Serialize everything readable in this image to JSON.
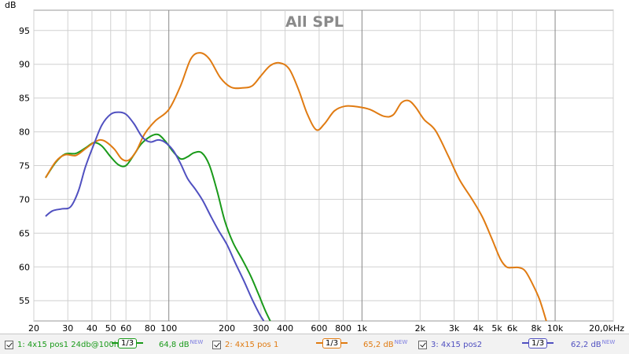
{
  "chart_data": {
    "type": "line",
    "title": "All SPL",
    "ylabel": "dB",
    "xlabel": "",
    "x_scale": "log",
    "xlim": [
      20,
      20000
    ],
    "ylim": [
      52,
      98
    ],
    "grid": true,
    "x_tick_values": [
      20,
      30,
      40,
      50,
      60,
      80,
      100,
      200,
      300,
      400,
      600,
      800,
      1000,
      2000,
      3000,
      4000,
      5000,
      6000,
      8000,
      10000,
      20000
    ],
    "x_tick_labels": [
      "20",
      "30",
      "40",
      "50",
      "60",
      "80",
      "100",
      "200",
      "300",
      "400",
      "600",
      "800",
      "1k",
      "2k",
      "3k",
      "4k",
      "5k",
      "6k",
      "8k",
      "10k",
      "20,0kHz"
    ],
    "y_tick_values": [
      55,
      60,
      65,
      70,
      75,
      80,
      85,
      90,
      95
    ],
    "y_tick_labels": [
      "55",
      "60",
      "65",
      "70",
      "75",
      "80",
      "85",
      "90",
      "95"
    ],
    "series": [
      {
        "name": "1: 4x15 pos1 24db@100h",
        "color": "#1a9a1a",
        "points": [
          [
            23,
            73.2
          ],
          [
            26,
            75.5
          ],
          [
            29,
            76.7
          ],
          [
            33,
            76.8
          ],
          [
            37,
            77.6
          ],
          [
            41,
            78.4
          ],
          [
            45,
            77.9
          ],
          [
            50,
            76.3
          ],
          [
            55,
            75.1
          ],
          [
            60,
            75.0
          ],
          [
            66,
            76.6
          ],
          [
            72,
            78.2
          ],
          [
            80,
            79.3
          ],
          [
            88,
            79.6
          ],
          [
            96,
            78.6
          ],
          [
            105,
            77.1
          ],
          [
            115,
            76.0
          ],
          [
            125,
            76.3
          ],
          [
            135,
            76.9
          ],
          [
            148,
            76.9
          ],
          [
            162,
            75.1
          ],
          [
            178,
            71.2
          ],
          [
            195,
            66.8
          ],
          [
            215,
            63.6
          ],
          [
            240,
            61.1
          ],
          [
            265,
            58.7
          ],
          [
            290,
            56.1
          ],
          [
            315,
            53.6
          ],
          [
            335,
            52.0
          ]
        ]
      },
      {
        "name": "2: 4x15 pos 1",
        "color": "#e07b12",
        "points": [
          [
            23,
            73.2
          ],
          [
            26,
            75.6
          ],
          [
            29,
            76.6
          ],
          [
            33,
            76.5
          ],
          [
            37,
            77.5
          ],
          [
            42,
            78.6
          ],
          [
            46,
            78.7
          ],
          [
            52,
            77.5
          ],
          [
            57,
            76.0
          ],
          [
            62,
            75.8
          ],
          [
            68,
            77.2
          ],
          [
            75,
            79.7
          ],
          [
            85,
            81.6
          ],
          [
            100,
            83.3
          ],
          [
            115,
            86.8
          ],
          [
            130,
            90.8
          ],
          [
            145,
            91.7
          ],
          [
            162,
            90.8
          ],
          [
            185,
            88.0
          ],
          [
            210,
            86.6
          ],
          [
            240,
            86.5
          ],
          [
            270,
            86.8
          ],
          [
            300,
            88.3
          ],
          [
            335,
            89.8
          ],
          [
            375,
            90.2
          ],
          [
            420,
            89.3
          ],
          [
            470,
            86.2
          ],
          [
            520,
            82.7
          ],
          [
            580,
            80.3
          ],
          [
            640,
            81.2
          ],
          [
            720,
            83.1
          ],
          [
            820,
            83.8
          ],
          [
            950,
            83.7
          ],
          [
            1100,
            83.3
          ],
          [
            1300,
            82.3
          ],
          [
            1450,
            82.5
          ],
          [
            1600,
            84.3
          ],
          [
            1750,
            84.6
          ],
          [
            1900,
            83.6
          ],
          [
            2100,
            81.8
          ],
          [
            2400,
            80.2
          ],
          [
            2800,
            76.4
          ],
          [
            3200,
            72.9
          ],
          [
            3700,
            70.1
          ],
          [
            4200,
            67.4
          ],
          [
            4700,
            64.2
          ],
          [
            5200,
            61.2
          ],
          [
            5600,
            60.0
          ],
          [
            6000,
            59.9
          ],
          [
            6500,
            59.9
          ],
          [
            7000,
            59.4
          ],
          [
            7600,
            57.6
          ],
          [
            8300,
            55.2
          ],
          [
            9000,
            52.0
          ]
        ]
      },
      {
        "name": "3: 4x15 pos2",
        "color": "#5050c0",
        "points": [
          [
            23,
            67.5
          ],
          [
            25,
            68.3
          ],
          [
            28,
            68.6
          ],
          [
            31,
            68.9
          ],
          [
            34,
            71.2
          ],
          [
            37,
            74.8
          ],
          [
            41,
            78.2
          ],
          [
            45,
            81.0
          ],
          [
            50,
            82.6
          ],
          [
            55,
            82.9
          ],
          [
            60,
            82.6
          ],
          [
            66,
            81.2
          ],
          [
            73,
            79.2
          ],
          [
            80,
            78.5
          ],
          [
            88,
            78.8
          ],
          [
            95,
            78.5
          ],
          [
            105,
            77.3
          ],
          [
            115,
            75.3
          ],
          [
            125,
            73.1
          ],
          [
            138,
            71.4
          ],
          [
            150,
            69.8
          ],
          [
            165,
            67.5
          ],
          [
            180,
            65.5
          ],
          [
            200,
            63.3
          ],
          [
            220,
            60.7
          ],
          [
            245,
            57.9
          ],
          [
            270,
            55.2
          ],
          [
            295,
            53.0
          ],
          [
            310,
            52.0
          ]
        ]
      }
    ]
  },
  "legend": [
    {
      "label": "1: 4x15 pos1 24db@100h",
      "smoothing": "1/3",
      "level": "64,8 dB",
      "badge": "NEW"
    },
    {
      "label": "2: 4x15 pos 1",
      "smoothing": "1/3",
      "level": "65,2 dB",
      "badge": "NEW"
    },
    {
      "label": "3: 4x15 pos2",
      "smoothing": "1/3",
      "level": "62,2 dB",
      "badge": "NEW"
    }
  ],
  "colors": {
    "plot_background": "#ffffff",
    "grid_major": "#888888",
    "grid_minor": "#d0d0d0",
    "legend_background": "#f2f2f2"
  }
}
